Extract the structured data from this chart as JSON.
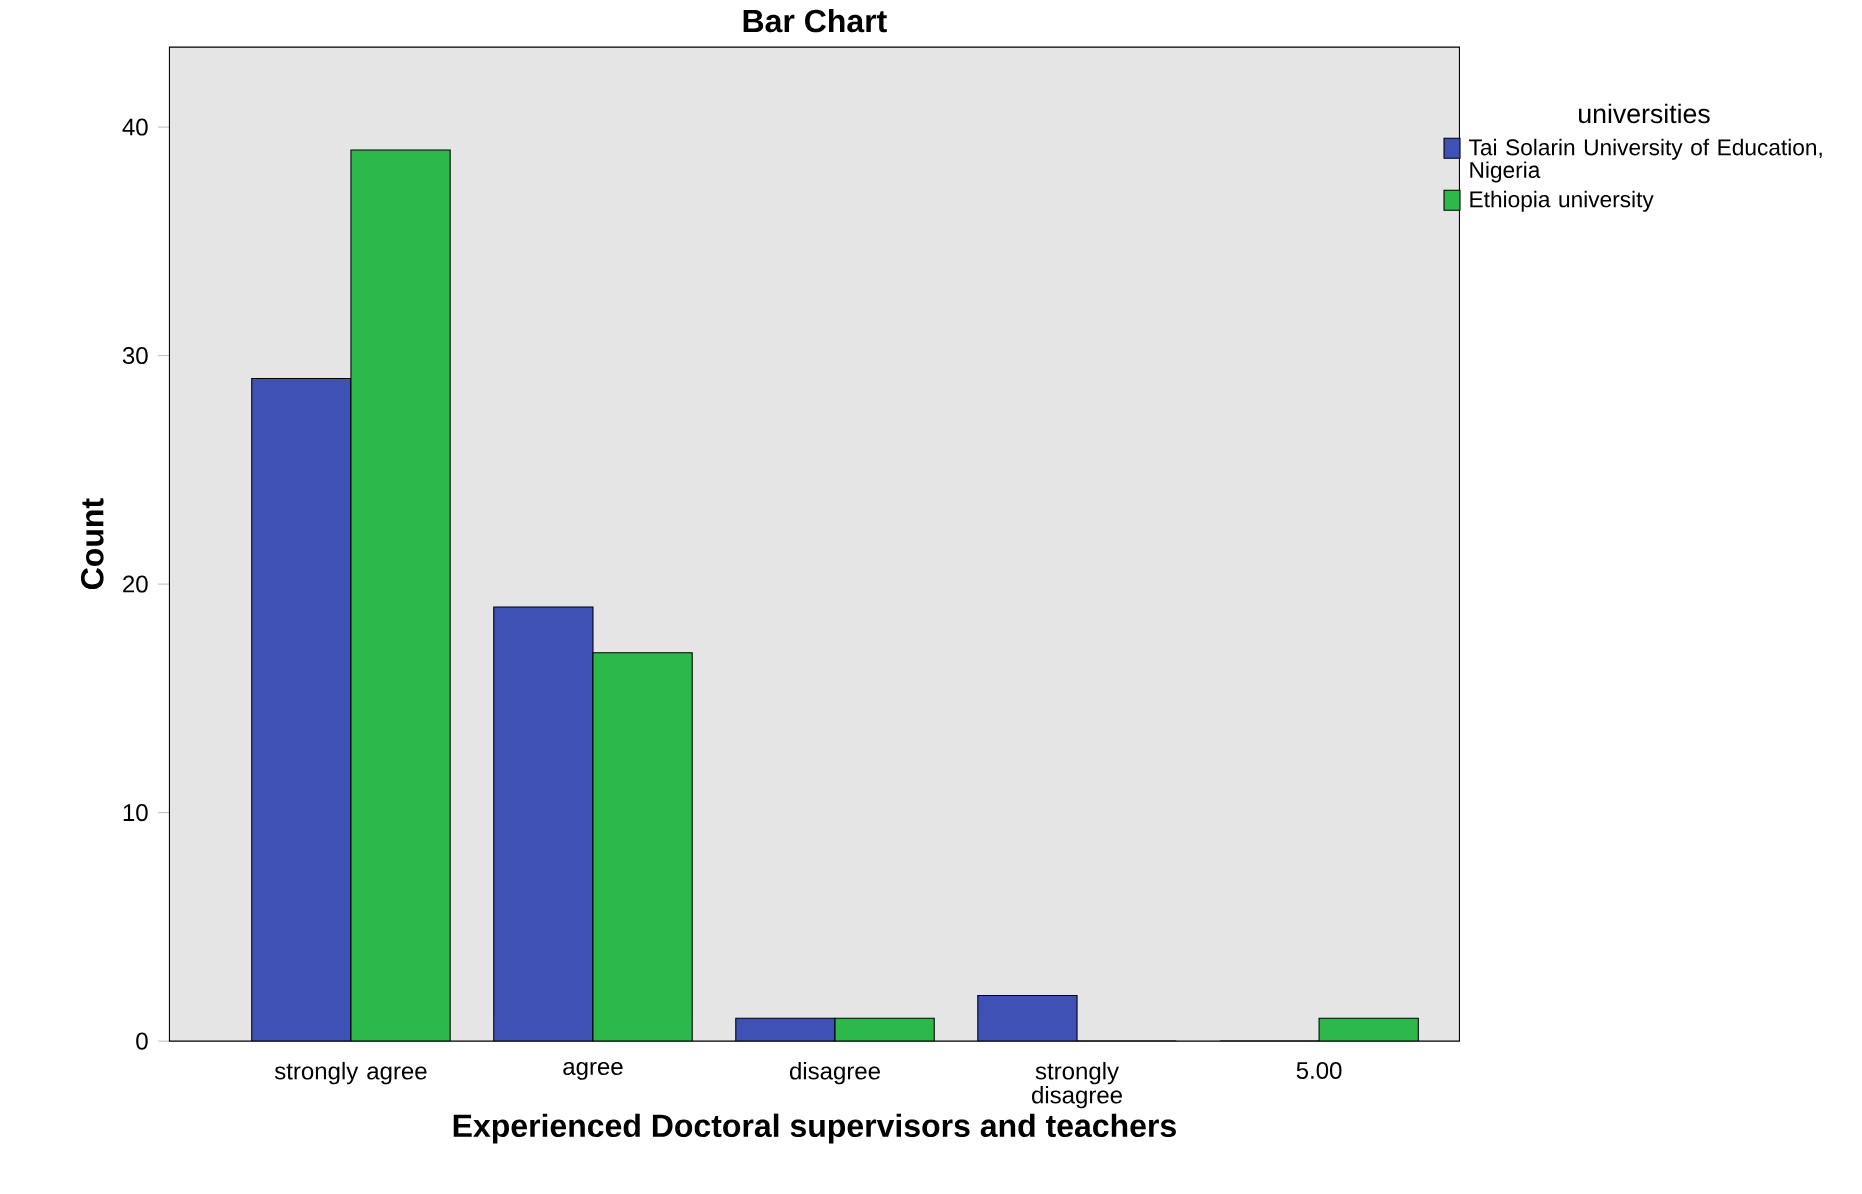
{
  "chart_data": {
    "type": "bar",
    "title": "Bar Chart",
    "xlabel": "Experienced Doctoral supervisors and teachers",
    "ylabel": "Count",
    "legend_title": "universities",
    "categories": [
      "strongly agree",
      "agree",
      "disagree",
      "strongly disagree",
      "5.00"
    ],
    "series": [
      {
        "name": "Tai Solarin University of Education, Nigeria",
        "color": "#3f51b5",
        "values": [
          29,
          19,
          1,
          2,
          0
        ]
      },
      {
        "name": "Ethiopia university",
        "color": "#2db84a",
        "values": [
          39,
          17,
          1,
          0,
          1
        ]
      }
    ],
    "ylim": [
      0,
      43.5
    ],
    "yticks": [
      0,
      10,
      20,
      30,
      40
    ],
    "grid": false,
    "legend": "top right"
  }
}
